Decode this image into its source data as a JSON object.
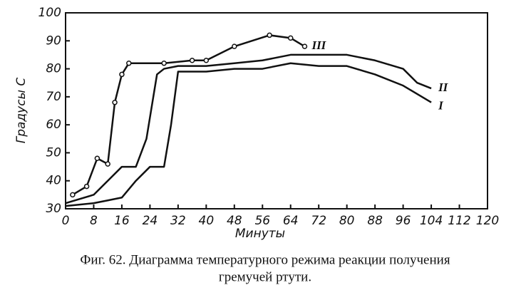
{
  "chart_data": {
    "type": "line",
    "y_label": "Градусы С",
    "x_label": "Минуты",
    "caption": [
      "Фиг. 62. Диаграмма температурного режима реакции получения",
      "гремучей ртути."
    ],
    "xlim": [
      0,
      120
    ],
    "xticks": [
      0,
      8,
      16,
      24,
      32,
      40,
      48,
      56,
      64,
      72,
      80,
      88,
      96,
      104,
      112,
      120
    ],
    "ylim": [
      30,
      100
    ],
    "yticks": [
      30,
      40,
      50,
      60,
      70,
      80,
      90,
      100
    ],
    "grid": false,
    "series": [
      {
        "name": "I",
        "color": "#111111",
        "marker": false,
        "x": [
          0,
          8,
          12,
          16,
          20,
          24,
          28,
          30,
          32,
          40,
          48,
          56,
          64,
          72,
          80,
          88,
          96,
          104
        ],
        "values": [
          31,
          32,
          33,
          34,
          40,
          45,
          45,
          60,
          79,
          79,
          80,
          80,
          82,
          81,
          81,
          78,
          74,
          68
        ]
      },
      {
        "name": "II",
        "color": "#111111",
        "marker": false,
        "x": [
          0,
          8,
          12,
          16,
          20,
          23,
          26,
          28,
          32,
          40,
          48,
          56,
          64,
          72,
          80,
          88,
          96,
          100,
          104
        ],
        "values": [
          32,
          35,
          40,
          45,
          45,
          55,
          78,
          80,
          81,
          81,
          82,
          83,
          85,
          85,
          85,
          83,
          80,
          75,
          73
        ]
      },
      {
        "name": "III",
        "color": "#111111",
        "marker": true,
        "x": [
          2,
          6,
          9,
          12,
          14,
          16,
          18,
          28,
          36,
          40,
          48,
          58,
          64,
          68
        ],
        "values": [
          35,
          38,
          48,
          46,
          68,
          78,
          82,
          82,
          83,
          83,
          88,
          92,
          91,
          88
        ]
      }
    ]
  }
}
